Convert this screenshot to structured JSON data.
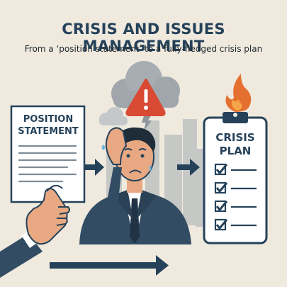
{
  "header": {
    "title": "CRISIS AND ISSUES MANAGEMENT",
    "subtitle": "From a ‘position statement’ to a fully-fledged crisis plan"
  },
  "position_statement_card": {
    "line1": "POSITION",
    "line2": "STATEMENT"
  },
  "crisis_plan_card": {
    "line1": "CRISIS",
    "line2": "PLAN",
    "checked_items": 4
  },
  "icons": {
    "warning": "warning-triangle-icon",
    "fire": "flame-icon",
    "arrows": "right-arrow-icon",
    "checkbox": "checkbox-checked-icon"
  },
  "colors": {
    "background": "#efe9de",
    "navy": "#25425a",
    "alert_red": "#d84a33",
    "flame_orange": "#e4702f",
    "cloud_gray": "#9aa2a8",
    "skin": "#e8a982",
    "suit": "#324c63"
  }
}
